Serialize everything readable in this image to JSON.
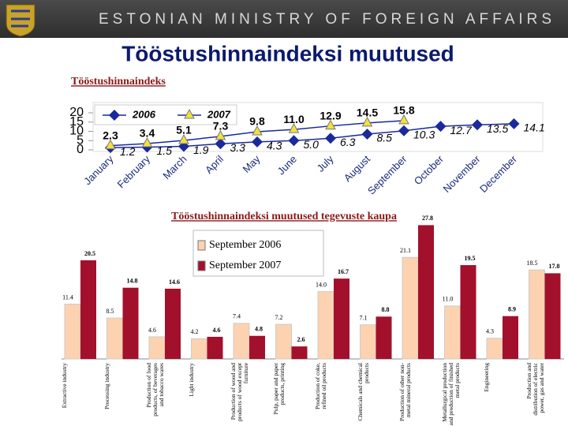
{
  "header": {
    "org": "ESTONIAN MINISTRY OF FOREIGN AFFAIRS"
  },
  "title": "Tööstushinnaindeksi muutused",
  "chart_data": [
    {
      "type": "line",
      "title": "Tööstushinnaindeks",
      "categories": [
        "January",
        "February",
        "March",
        "April",
        "May",
        "June",
        "July",
        "August",
        "September",
        "October",
        "November",
        "December"
      ],
      "ylim": [
        0,
        20
      ],
      "yticks": [
        0,
        5,
        10,
        15,
        20
      ],
      "series": [
        {
          "name": "2006",
          "color": "#1a2a9c",
          "marker": "diamond",
          "values": [
            1.2,
            1.5,
            1.9,
            3.3,
            4.3,
            5.0,
            6.3,
            8.5,
            10.3,
            12.7,
            13.5,
            14.1
          ],
          "value_labels": [
            "1.2",
            "1.5",
            "1.9",
            "3.3",
            "4.3",
            "5.0",
            "6.3",
            "8.5",
            "10.3",
            "12.7",
            "13.5",
            "14.1"
          ]
        },
        {
          "name": "2007",
          "color": "#f0e040",
          "marker": "triangle",
          "values": [
            2.3,
            3.4,
            5.1,
            7.3,
            9.8,
            11.0,
            12.9,
            14.5,
            15.8,
            null,
            null,
            null
          ],
          "value_labels": [
            "2.3",
            "3.4",
            "5.1",
            "7.3",
            "9.8",
            "11.0",
            "12.9",
            "14.5",
            "15.8",
            null,
            null,
            null
          ]
        }
      ]
    },
    {
      "type": "bar",
      "title": "Tööstushinnaindeksi muutused tegevuste kaupa",
      "categories": [
        "Extractive industry",
        "Processing industry",
        "Production of food products, of beverages and tobacco wares",
        "Light industry",
        "Production of wood and products of wood except furniture",
        "Pulp, paper and paper products, printing",
        "Production of coke, refined oil products",
        "Chemicals and chemical products",
        "Production of other non-metal mineral products",
        "Metallurgical production and production of finished metal products",
        "Engineering",
        "Production and distribution of electric power, gas and water"
      ],
      "series": [
        {
          "name": "September 2006",
          "color": "#fcd2b0",
          "values": [
            11.4,
            8.5,
            4.6,
            4.2,
            7.4,
            7.2,
            14.0,
            7.1,
            21.1,
            11.0,
            4.3,
            18.5
          ],
          "value_labels": [
            "11.4",
            "8.5",
            "4.6",
            "4.2",
            "7.4",
            "7.2",
            "14.0",
            "7.1",
            "21.1",
            "11.0",
            "4.3",
            "18.5"
          ]
        },
        {
          "name": "September  2007",
          "color": "#a3102c",
          "values": [
            20.5,
            14.8,
            14.6,
            4.6,
            4.8,
            2.6,
            16.7,
            8.8,
            27.8,
            19.5,
            8.9,
            17.8
          ],
          "value_labels": [
            "20.5",
            "14.8",
            "14.6",
            "4.6",
            "4.8",
            "2.6",
            "16.7",
            "8.8",
            "27.8",
            "19.5",
            "8.9",
            "17.8"
          ]
        }
      ]
    }
  ]
}
